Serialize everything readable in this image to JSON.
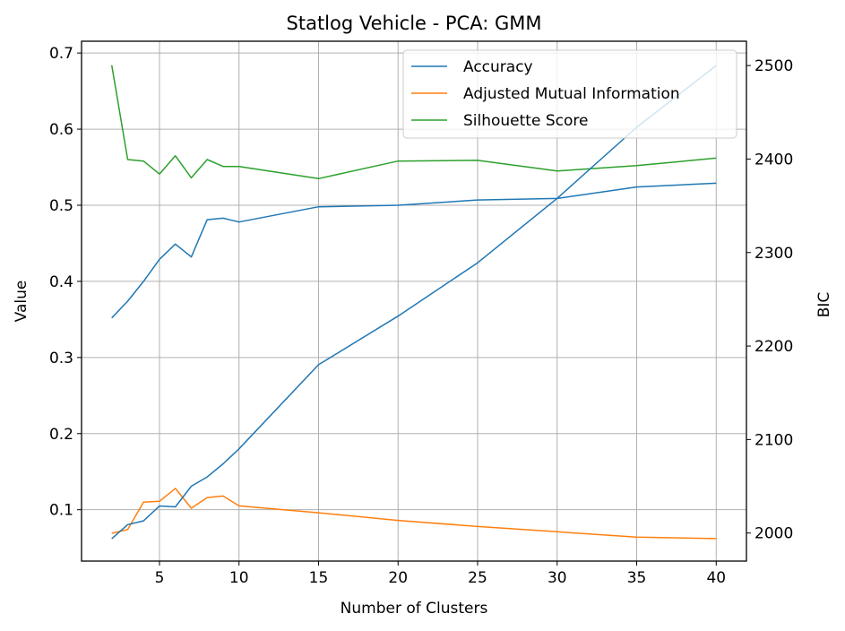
{
  "chart_data": {
    "type": "line",
    "title": "Statlog Vehicle - PCA: GMM",
    "xlabel": "Number of Clusters",
    "ylabel": "Value",
    "y2label": "BIC",
    "xticks": [
      5,
      10,
      15,
      20,
      25,
      30,
      35,
      40
    ],
    "yticks": [
      0.1,
      0.2,
      0.3,
      0.4,
      0.5,
      0.6,
      0.7
    ],
    "y2ticks": [
      2000,
      2100,
      2200,
      2300,
      2400,
      2500
    ],
    "xlim": [
      0.1,
      41.9
    ],
    "ylim": [
      0.0325,
      0.7155
    ],
    "y2lim": [
      1970,
      2526
    ],
    "grid": true,
    "legend_position": "upper right",
    "series": [
      {
        "name": "Accuracy",
        "color": "#1f77b4",
        "axis": "left",
        "x": [
          2,
          3,
          4,
          5,
          6,
          7,
          8,
          9,
          10,
          15,
          20,
          25,
          30,
          35,
          40
        ],
        "y": [
          0.352,
          0.374,
          0.4,
          0.429,
          0.449,
          0.432,
          0.481,
          0.483,
          0.478,
          0.498,
          0.5,
          0.507,
          0.509,
          0.524,
          0.529
        ]
      },
      {
        "name": "Adjusted Mutual Information",
        "color": "#ff7f0e",
        "axis": "left",
        "x": [
          2,
          3,
          4,
          5,
          6,
          7,
          8,
          9,
          10,
          15,
          20,
          25,
          30,
          35,
          40
        ],
        "y": [
          0.069,
          0.074,
          0.11,
          0.111,
          0.128,
          0.102,
          0.116,
          0.118,
          0.105,
          0.096,
          0.086,
          0.078,
          0.071,
          0.064,
          0.062
        ]
      },
      {
        "name": "Silhouette Score",
        "color": "#2ca02c",
        "axis": "left",
        "x": [
          2,
          3,
          4,
          5,
          6,
          7,
          8,
          9,
          10,
          15,
          20,
          25,
          30,
          35,
          40
        ],
        "y": [
          0.684,
          0.56,
          0.558,
          0.541,
          0.565,
          0.536,
          0.56,
          0.551,
          0.551,
          0.535,
          0.558,
          0.559,
          0.545,
          0.552,
          0.562
        ]
      },
      {
        "name": "BIC",
        "color": "#1f77b4",
        "axis": "right",
        "show_in_legend": false,
        "x": [
          2,
          3,
          4,
          5,
          6,
          7,
          8,
          9,
          10,
          15,
          20,
          25,
          30,
          35,
          40
        ],
        "y": [
          1994,
          2009,
          2013,
          2029,
          2028,
          2050,
          2060,
          2074,
          2090,
          2180,
          2232,
          2289,
          2358,
          2434,
          2500
        ]
      }
    ]
  }
}
